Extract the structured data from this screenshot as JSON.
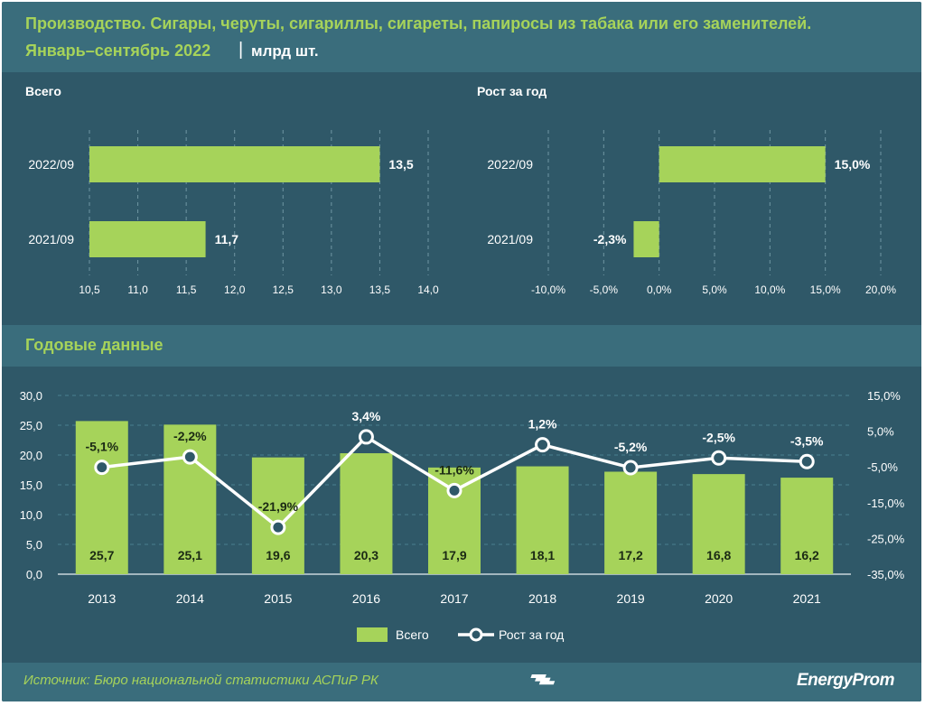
{
  "header": {
    "title_line1": "Производство. Сигары, черуты, сигариллы, сигареты, папиросы из табака или его заменителей.",
    "title_line2": "Январь–сентябрь 2022",
    "separator": "|",
    "unit": "млрд шт."
  },
  "section_title": "Годовые данные",
  "footer": {
    "source": "Источник: Бюро национальной статистики АСПиР РК",
    "brand": "EnergyProm"
  },
  "colors": {
    "background": "#2f5868",
    "band": "#3a6d7c",
    "bar": "#a6d35a",
    "accent_text": "#a6d35a",
    "line": "#ffffff"
  },
  "chart_data": [
    {
      "type": "bar",
      "orientation": "horizontal",
      "title": "Всего",
      "categories": [
        "2022/09",
        "2021/09"
      ],
      "values": [
        13.5,
        11.7
      ],
      "value_labels": [
        "13,5",
        "11,7"
      ],
      "xlim": [
        10.5,
        14.0
      ],
      "ticks": [
        "10,5",
        "11,0",
        "11,5",
        "12,0",
        "12,5",
        "13,0",
        "13,5",
        "14,0"
      ]
    },
    {
      "type": "bar",
      "orientation": "horizontal",
      "title": "Рост за год",
      "categories": [
        "2022/09",
        "2021/09"
      ],
      "values": [
        15.0,
        -2.3
      ],
      "value_labels": [
        "15,0%",
        "-2,3%"
      ],
      "xlim": [
        -10.0,
        20.0
      ],
      "ticks": [
        "-10,0%",
        "-5,0%",
        "0,0%",
        "5,0%",
        "10,0%",
        "15,0%",
        "20,0%"
      ]
    },
    {
      "type": "bar+line",
      "categories": [
        "2013",
        "2014",
        "2015",
        "2016",
        "2017",
        "2018",
        "2019",
        "2020",
        "2021"
      ],
      "series": [
        {
          "name": "Всего",
          "type": "bar",
          "axis": "left",
          "values": [
            25.7,
            25.1,
            19.6,
            20.3,
            17.9,
            18.1,
            17.2,
            16.8,
            16.2
          ],
          "labels": [
            "25,7",
            "25,1",
            "19,6",
            "20,3",
            "17,9",
            "18,1",
            "17,2",
            "16,8",
            "16,2"
          ]
        },
        {
          "name": "Рост за год",
          "type": "line",
          "axis": "right",
          "values": [
            -5.1,
            -2.2,
            -21.9,
            3.4,
            -11.6,
            1.2,
            -5.2,
            -2.5,
            -3.5
          ],
          "labels": [
            "-5,1%",
            "-2,2%",
            "-21,9%",
            "3,4%",
            "-11,6%",
            "1,2%",
            "-5,2%",
            "-2,5%",
            "-3,5%"
          ]
        }
      ],
      "y_left": {
        "lim": [
          0,
          30
        ],
        "ticks": [
          "0,0",
          "5,0",
          "10,0",
          "15,0",
          "20,0",
          "25,0",
          "30,0"
        ]
      },
      "y_right": {
        "lim": [
          -35,
          15
        ],
        "ticks": [
          "-35,0%",
          "-25,0%",
          "-15,0%",
          "-5,0%",
          "5,0%",
          "15,0%"
        ]
      },
      "grid": true,
      "legend": "bottom"
    }
  ]
}
